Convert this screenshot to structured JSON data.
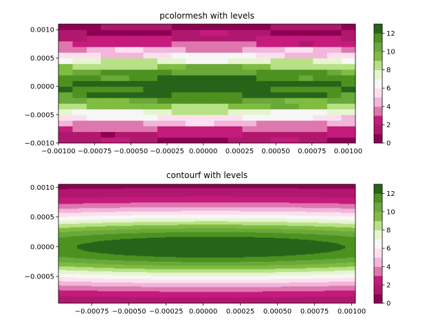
{
  "chart_data": [
    {
      "type": "heatmap",
      "title": "pcolormesh with levels",
      "xlim": [
        -0.001,
        0.00105
      ],
      "ylim": [
        -0.001,
        0.0011
      ],
      "xticks": [
        "−0.00100",
        "−0.00075",
        "−0.00050",
        "−0.00025",
        "0.00000",
        "0.00025",
        "0.00050",
        "0.00075",
        "0.00100"
      ],
      "xtick_values": [
        -0.001,
        -0.00075,
        -0.0005,
        -0.00025,
        0.0,
        0.00025,
        0.0005,
        0.00075,
        0.001
      ],
      "yticks": [
        "−0.0010",
        "−0.0005",
        "0.0000",
        "0.0005",
        "0.0010"
      ],
      "ytick_values": [
        -0.001,
        -0.0005,
        0.0,
        0.0005,
        0.001
      ],
      "colorbar": {
        "ticks": [
          "0",
          "2",
          "4",
          "6",
          "8",
          "10",
          "12"
        ],
        "tick_values": [
          0,
          2,
          4,
          6,
          8,
          10,
          12
        ],
        "levels": [
          0,
          1,
          2,
          3,
          4,
          5,
          6,
          7,
          8,
          9,
          10,
          11,
          12,
          13
        ],
        "colors": [
          "#8e0152",
          "#b0186e",
          "#c51b7d",
          "#de77ae",
          "#f1b6da",
          "#fde0ef",
          "#f7f7f7",
          "#e6f5d0",
          "#b8e186",
          "#7fbc41",
          "#6aa83a",
          "#4d9221",
          "#276419"
        ]
      }
    },
    {
      "type": "heatmap",
      "title": "contourf with levels",
      "xlim": [
        -0.000975,
        0.001025
      ],
      "ylim": [
        -0.00095,
        0.00105
      ],
      "xticks": [
        "−0.00075",
        "−0.00050",
        "−0.00025",
        "0.00000",
        "0.00025",
        "0.00050",
        "0.00075",
        "0.00100"
      ],
      "xtick_values": [
        -0.00075,
        -0.0005,
        -0.00025,
        0.0,
        0.00025,
        0.0005,
        0.00075,
        0.001
      ],
      "yticks": [
        "−0.0005",
        "0.0000",
        "0.0005",
        "0.0010"
      ],
      "ytick_values": [
        -0.0005,
        0.0,
        0.0005,
        0.001
      ],
      "colorbar": {
        "ticks": [
          "0",
          "2",
          "4",
          "6",
          "8",
          "10",
          "12"
        ],
        "tick_values": [
          0,
          2,
          4,
          6,
          8,
          10,
          12
        ],
        "levels": [
          0,
          1,
          2,
          3,
          4,
          5,
          6,
          7,
          8,
          9,
          10,
          11,
          12,
          13
        ],
        "colors": [
          "#8e0152",
          "#b0186e",
          "#c51b7d",
          "#de77ae",
          "#f1b6da",
          "#fde0ef",
          "#f7f7f7",
          "#e6f5d0",
          "#b8e186",
          "#7fbc41",
          "#6aa83a",
          "#4d9221",
          "#276419"
        ]
      }
    }
  ]
}
